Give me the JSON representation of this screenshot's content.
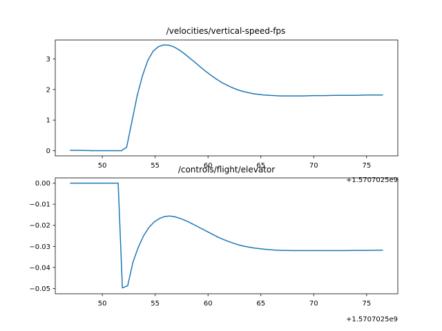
{
  "chart_data": [
    {
      "type": "line",
      "title": "/velocities/vertical-speed-fps",
      "xlabel": "",
      "ylabel": "",
      "x_offset_label": "+1.5707025e9",
      "xlim": [
        45.55,
        77.95
      ],
      "ylim": [
        -0.17,
        3.62
      ],
      "xticks": [
        50,
        55,
        60,
        65,
        70,
        75
      ],
      "xtick_labels": [
        "50",
        "55",
        "60",
        "65",
        "70",
        "75"
      ],
      "yticks": [
        0,
        1,
        2,
        3
      ],
      "ytick_labels": [
        "0",
        "1",
        "2",
        "3"
      ],
      "grid": false,
      "color": "#1f77b4",
      "series": [
        {
          "x": [
            47,
            48,
            49,
            50,
            51,
            51.8,
            52.3,
            52.8,
            53.3,
            53.8,
            54.3,
            54.8,
            55.3,
            55.8,
            56.3,
            56.8,
            57.3,
            57.8,
            58.3,
            58.8,
            59.3,
            59.8,
            60.3,
            60.8,
            61.3,
            61.8,
            62.3,
            62.8,
            63.3,
            63.8,
            64.3,
            64.8,
            65.3,
            65.8,
            66.3,
            66.8,
            67.3,
            68,
            69,
            70,
            71,
            72,
            73,
            74,
            75,
            76.5
          ],
          "values": [
            0.01,
            0.01,
            0.0,
            0.0,
            0.0,
            0.0,
            0.11,
            0.95,
            1.8,
            2.45,
            2.95,
            3.25,
            3.4,
            3.46,
            3.45,
            3.39,
            3.29,
            3.16,
            3.02,
            2.88,
            2.73,
            2.59,
            2.46,
            2.34,
            2.23,
            2.14,
            2.06,
            1.99,
            1.94,
            1.9,
            1.86,
            1.84,
            1.82,
            1.81,
            1.8,
            1.79,
            1.79,
            1.79,
            1.79,
            1.8,
            1.8,
            1.81,
            1.81,
            1.81,
            1.82,
            1.82
          ]
        }
      ]
    },
    {
      "type": "line",
      "title": "/controls/flight/elevator",
      "xlabel": "",
      "ylabel": "",
      "x_offset_label": "+1.5707025e9",
      "xlim": [
        45.55,
        77.95
      ],
      "ylim": [
        -0.0525,
        0.0025
      ],
      "xticks": [
        50,
        55,
        60,
        65,
        70,
        75
      ],
      "xtick_labels": [
        "50",
        "55",
        "60",
        "65",
        "70",
        "75"
      ],
      "yticks": [
        0.0,
        -0.01,
        -0.02,
        -0.03,
        -0.04,
        -0.05
      ],
      "ytick_labels": [
        "0.00",
        "−0.01",
        "−0.02",
        "−0.03",
        "−0.04",
        "−0.05"
      ],
      "grid": false,
      "color": "#1f77b4",
      "series": [
        {
          "x": [
            47,
            48,
            49,
            50,
            51,
            51.5,
            51.9,
            52.4,
            52.9,
            53.4,
            53.9,
            54.4,
            54.9,
            55.4,
            55.9,
            56.4,
            56.9,
            57.4,
            57.9,
            58.4,
            58.9,
            59.4,
            59.9,
            60.4,
            60.9,
            61.4,
            61.9,
            62.4,
            62.9,
            63.4,
            63.9,
            64.4,
            64.9,
            65.4,
            65.9,
            66.4,
            67,
            68,
            69,
            70,
            71,
            72,
            73,
            74,
            75,
            76.5
          ],
          "values": [
            0.0,
            0.0,
            0.0,
            0.0,
            0.0,
            0.0,
            -0.0497,
            -0.0487,
            -0.0375,
            -0.0305,
            -0.025,
            -0.0211,
            -0.0184,
            -0.0168,
            -0.0158,
            -0.0156,
            -0.016,
            -0.0168,
            -0.0178,
            -0.019,
            -0.0203,
            -0.0216,
            -0.0229,
            -0.0242,
            -0.0255,
            -0.0266,
            -0.0276,
            -0.0285,
            -0.0293,
            -0.0299,
            -0.0304,
            -0.0308,
            -0.0311,
            -0.0314,
            -0.0316,
            -0.0318,
            -0.0319,
            -0.032,
            -0.032,
            -0.032,
            -0.032,
            -0.032,
            -0.032,
            -0.0319,
            -0.0319,
            -0.0318
          ]
        }
      ]
    }
  ]
}
